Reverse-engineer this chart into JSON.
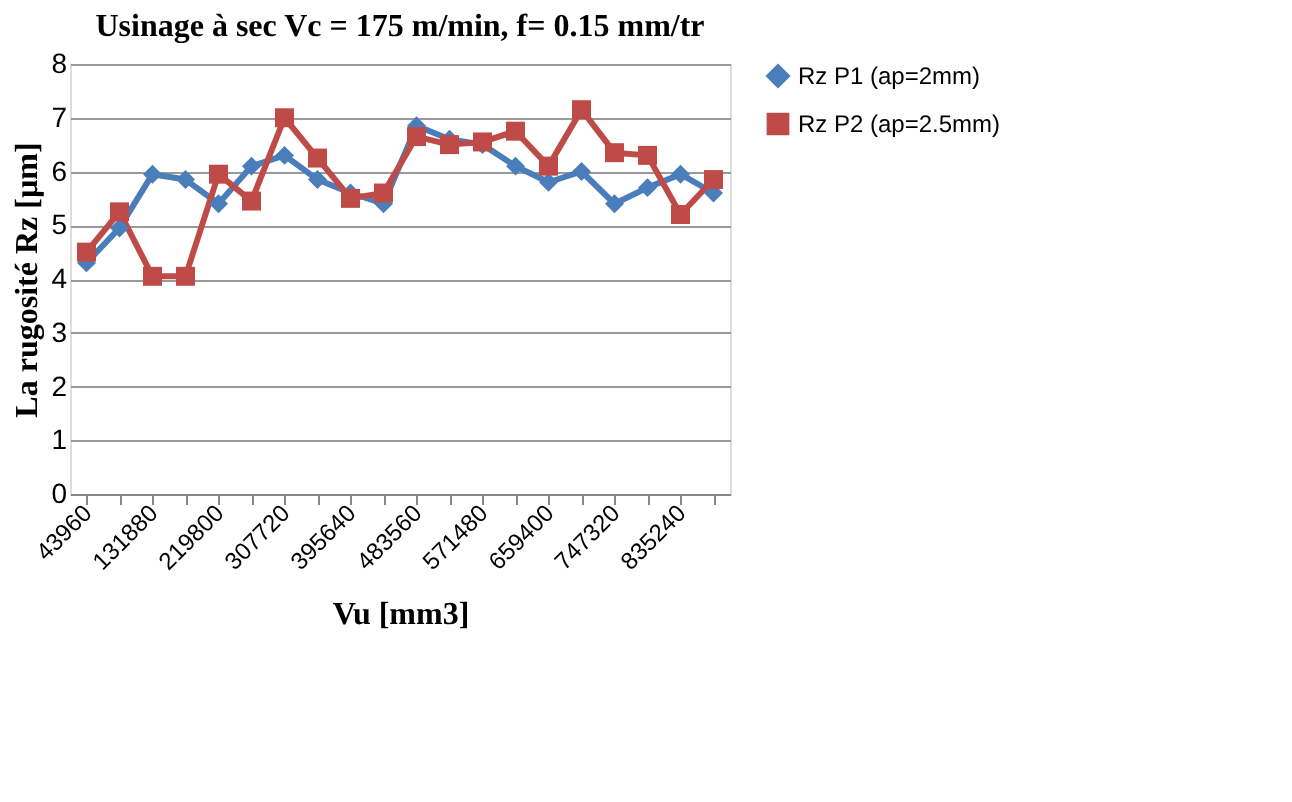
{
  "chart_data": {
    "type": "line",
    "title": "Usinage à sec Vc = 175 m/min, f= 0.15 mm/tr",
    "xlabel": "Vu [mm3]",
    "ylabel": "La rugosité Rz [µm]",
    "categories": [
      "43960",
      null,
      "131880",
      null,
      "219800",
      null,
      "307720",
      null,
      "395640",
      null,
      "483560",
      null,
      "571480",
      null,
      "659400",
      null,
      "747320",
      null,
      "835240",
      null
    ],
    "series": [
      {
        "name": "Rz P1 (ap=2mm)",
        "color": "#4a7ebb",
        "marker": "diamond",
        "values": [
          4.3,
          4.95,
          5.95,
          5.85,
          5.4,
          6.1,
          6.3,
          5.85,
          5.6,
          5.4,
          6.85,
          6.6,
          6.5,
          6.1,
          5.8,
          6.0,
          5.4,
          5.7,
          5.95,
          5.6
        ]
      },
      {
        "name": "Rz P2 (ap=2.5mm)",
        "color": "#be4b48",
        "marker": "square",
        "values": [
          4.5,
          5.25,
          4.05,
          4.05,
          5.95,
          5.45,
          7.0,
          6.25,
          5.5,
          5.6,
          6.65,
          6.5,
          6.55,
          6.75,
          6.1,
          7.15,
          6.35,
          6.3,
          5.2,
          5.85
        ]
      }
    ],
    "ylim": [
      0,
      8
    ],
    "yticks": [
      0,
      1,
      2,
      3,
      4,
      5,
      6,
      7,
      8
    ],
    "grid": "y",
    "legend": "right"
  }
}
